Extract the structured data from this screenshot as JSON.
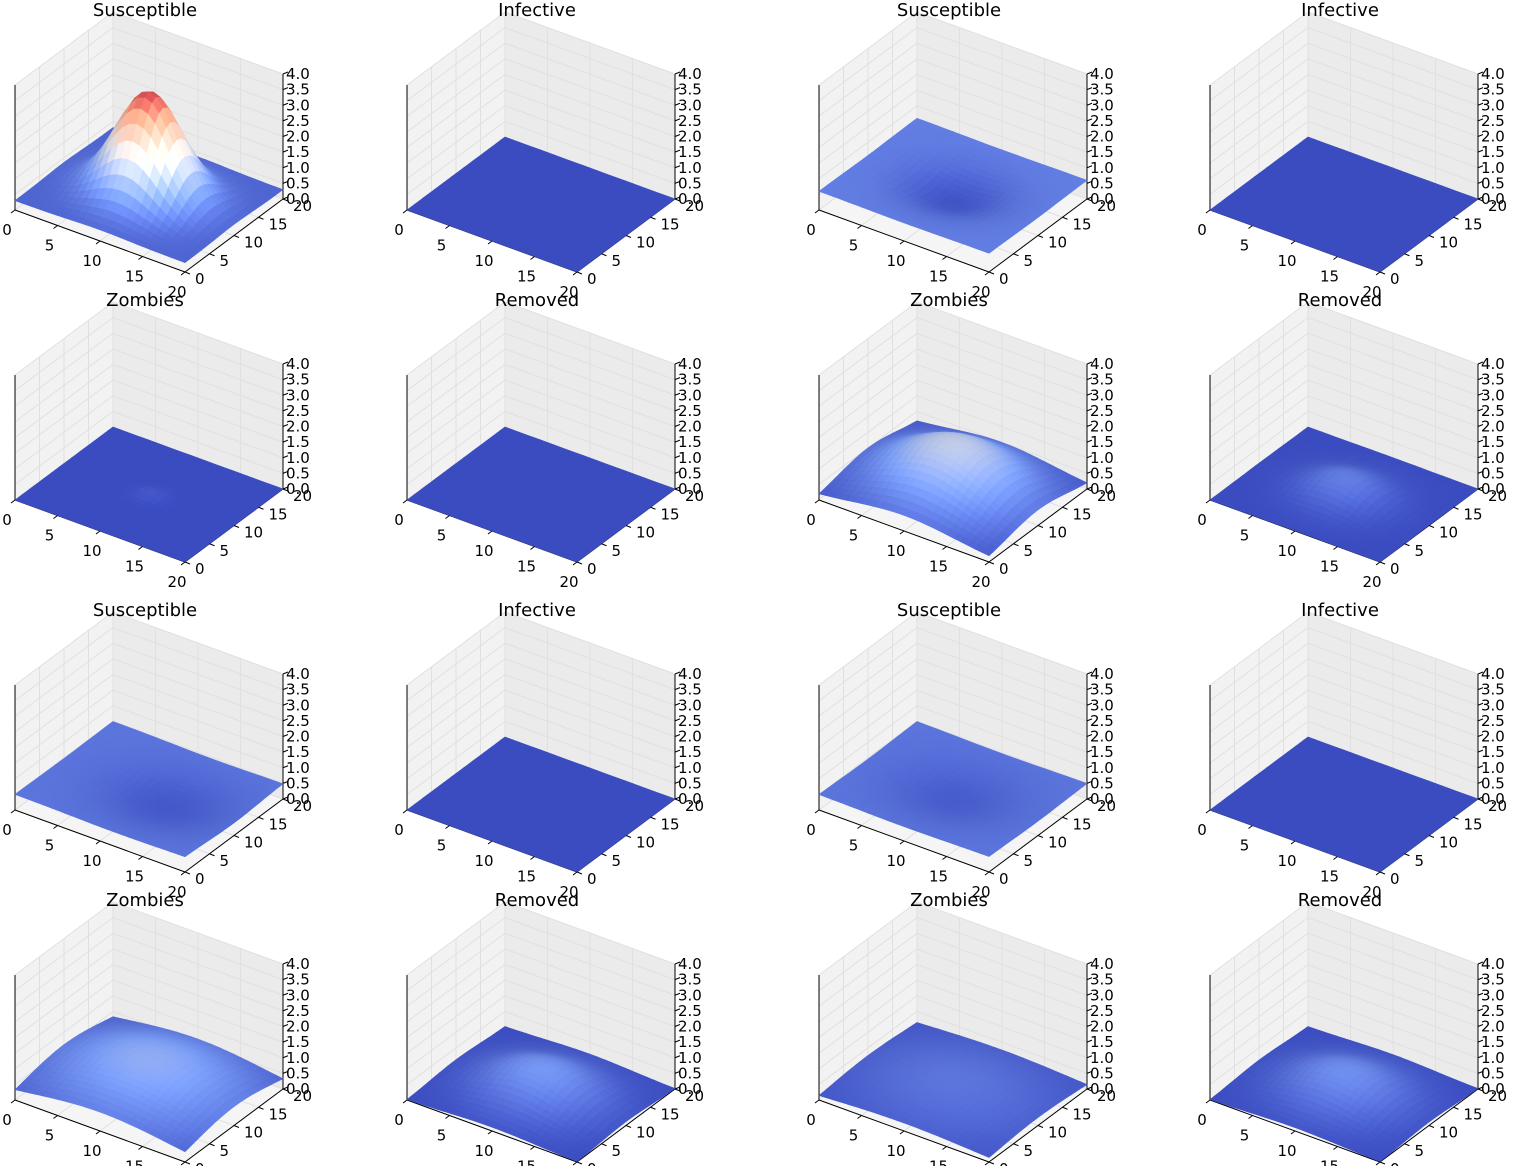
{
  "figure": {
    "rows": [
      [
        "Susceptible",
        "Infective",
        "Susceptible",
        "Infective"
      ],
      [
        "Zombies",
        "Removed",
        "Zombies",
        "Removed"
      ],
      [
        "Susceptible",
        "Infective",
        "Susceptible",
        "Infective"
      ],
      [
        "Zombies",
        "Removed",
        "Zombies",
        "Removed"
      ]
    ]
  },
  "chart_data": {
    "type": "surface",
    "colormap": "coolwarm",
    "grid": true,
    "x_ticks": [
      "0",
      "5",
      "10",
      "15",
      "20"
    ],
    "y_ticks": [
      "0",
      "5",
      "10",
      "15",
      "20"
    ],
    "z_ticks": [
      "0.0",
      "0.5",
      "1.0",
      "1.5",
      "2.0",
      "2.5",
      "3.0",
      "3.5",
      "4.0"
    ],
    "xlim": [
      0,
      20
    ],
    "ylim": [
      0,
      20
    ],
    "zlim": [
      0,
      4
    ],
    "color_limits": [
      0,
      4
    ],
    "panels": [
      {
        "title": "Susceptible",
        "kind": "gauss",
        "peak": 3.6,
        "base": 0.3,
        "center": [
          10,
          10
        ],
        "spread": 3.5
      },
      {
        "title": "Infective",
        "kind": "flat",
        "value": 0.0
      },
      {
        "title": "Susceptible",
        "kind": "saddle",
        "edge": 0.6,
        "center_value": 0.1,
        "center": [
          10,
          10
        ],
        "spread": 4
      },
      {
        "title": "Infective",
        "kind": "flat",
        "value": 0.0
      },
      {
        "title": "Zombies",
        "kind": "gauss",
        "peak": 0.15,
        "base": 0.0,
        "center": [
          10,
          10
        ],
        "spread": 1.2
      },
      {
        "title": "Removed",
        "kind": "flat",
        "value": 0.0
      },
      {
        "title": "Zombies",
        "kind": "gauss",
        "peak": 1.7,
        "base": 0.1,
        "center": [
          10,
          10
        ],
        "spread": 6
      },
      {
        "title": "Removed",
        "kind": "gauss",
        "peak": 0.6,
        "base": 0.0,
        "center": [
          10,
          10
        ],
        "spread": 3.5
      },
      {
        "title": "Susceptible",
        "kind": "saddle",
        "edge": 0.5,
        "center_value": 0.15,
        "center": [
          12,
          10
        ],
        "spread": 5
      },
      {
        "title": "Infective",
        "kind": "flat",
        "value": 0.0
      },
      {
        "title": "Susceptible",
        "kind": "saddle",
        "edge": 0.5,
        "center_value": 0.2,
        "center": [
          10,
          10
        ],
        "spread": 5
      },
      {
        "title": "Infective",
        "kind": "flat",
        "value": 0.0
      },
      {
        "title": "Zombies",
        "kind": "gauss",
        "peak": 1.2,
        "base": 0.1,
        "center": [
          10,
          10
        ],
        "spread": 8
      },
      {
        "title": "Removed",
        "kind": "gauss",
        "peak": 0.9,
        "base": 0.0,
        "center": [
          10,
          10
        ],
        "spread": 5
      },
      {
        "title": "Zombies",
        "kind": "gauss",
        "peak": 0.5,
        "base": 0.05,
        "center": [
          10,
          10
        ],
        "spread": 8
      },
      {
        "title": "Removed",
        "kind": "gauss",
        "peak": 0.8,
        "base": 0.0,
        "center": [
          10,
          10
        ],
        "spread": 5
      }
    ]
  }
}
